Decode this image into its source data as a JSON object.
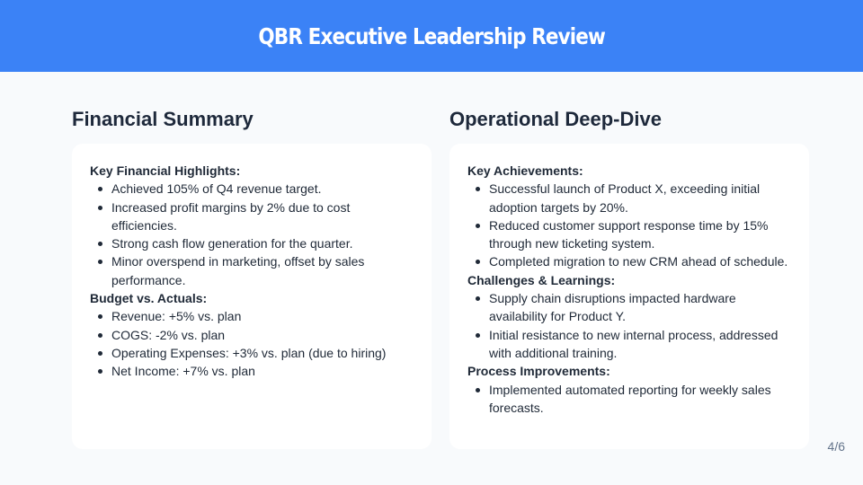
{
  "header": {
    "title": "QBR Executive Leadership Review",
    "color": "#3b82f6"
  },
  "columns": [
    {
      "title": "Financial Summary",
      "sections": [
        {
          "title": "Key Financial Highlights:",
          "items": [
            "Achieved 105% of Q4 revenue target.",
            "Increased profit margins by 2% due to cost efficiencies.",
            "Strong cash flow generation for the quarter.",
            "Minor overspend in marketing, offset by sales performance."
          ]
        },
        {
          "title": "Budget vs. Actuals:",
          "items": [
            "Revenue: +5% vs. plan",
            "COGS: -2% vs. plan",
            "Operating Expenses: +3% vs. plan (due to hiring)",
            "Net Income: +7% vs. plan"
          ]
        }
      ]
    },
    {
      "title": "Operational Deep-Dive",
      "sections": [
        {
          "title": "Key Achievements:",
          "items": [
            "Successful launch of Product X, exceeding initial adoption targets by 20%.",
            "Reduced customer support response time by 15% through new ticketing system.",
            "Completed migration to new CRM ahead of schedule."
          ]
        },
        {
          "title": "Challenges & Learnings:",
          "items": [
            "Supply chain disruptions impacted hardware availability for Product Y.",
            "Initial resistance to new internal process, addressed with additional training."
          ]
        },
        {
          "title": "Process Improvements:",
          "items": [
            "Implemented automated reporting for weekly sales forecasts."
          ]
        }
      ]
    }
  ],
  "footer": {
    "page_number": "4/6"
  }
}
